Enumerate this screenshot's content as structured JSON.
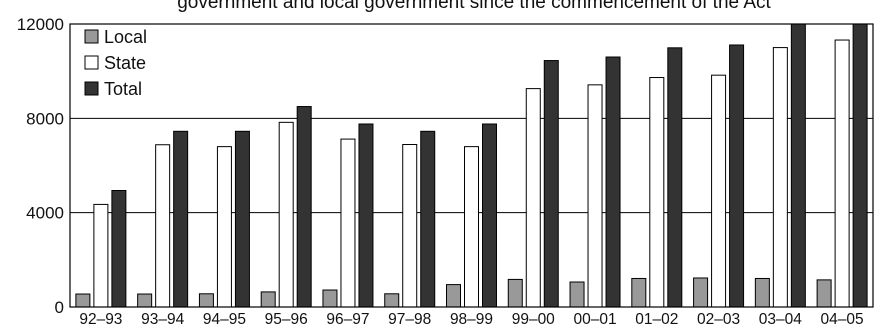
{
  "chart_data": {
    "type": "bar",
    "title": "government and local government since the commencement of the Act",
    "categories": [
      "92–93",
      "93–94",
      "94–95",
      "95–96",
      "96–97",
      "97–98",
      "98–99",
      "99–00",
      "00–01",
      "01–02",
      "02–03",
      "03–04",
      "04–05"
    ],
    "series": [
      {
        "name": "Local",
        "color": "#999999",
        "values": [
          550,
          550,
          560,
          640,
          720,
          560,
          950,
          1170,
          1060,
          1210,
          1230,
          1210,
          1150
        ]
      },
      {
        "name": "State",
        "color": "#ffffff",
        "values": [
          4350,
          6880,
          6800,
          7830,
          7120,
          6890,
          6800,
          9260,
          9420,
          9730,
          9830,
          11000,
          11320
        ]
      },
      {
        "name": "Total",
        "color": "#333333",
        "values": [
          4940,
          7450,
          7450,
          8500,
          7760,
          7450,
          7760,
          10450,
          10600,
          10990,
          11110,
          12300,
          12300
        ]
      }
    ],
    "y_ticks": [
      "0",
      "4000",
      "8000",
      "12000"
    ],
    "ylim": [
      0,
      12000
    ],
    "xlabel": "",
    "ylabel": "",
    "grid": "horizontal",
    "legend_position": "top-left"
  }
}
